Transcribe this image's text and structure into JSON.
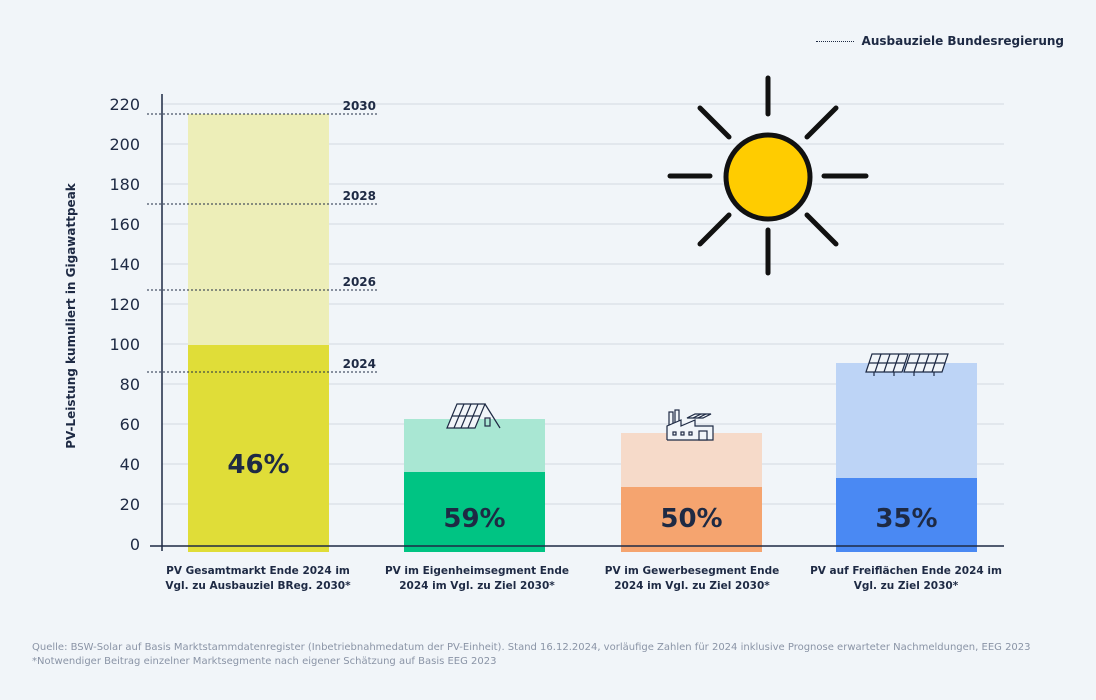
{
  "legend": {
    "target_label": "Ausbauziele Bundesregierung"
  },
  "chart_data": {
    "type": "bar",
    "ylabel": "PV-Leistung kumuliert in Gigawattpeak",
    "ylim": [
      0,
      220
    ],
    "yticks": [
      0,
      20,
      40,
      60,
      80,
      100,
      120,
      140,
      160,
      180,
      200,
      220
    ],
    "grid": true,
    "categories": [
      "PV Gesamtmarkt Ende 2024 im Vgl. zu Ausbauziel BReg. 2030*",
      "PV im Eigenheimsegment Ende 2024 im Vgl. zu Ziel 2030*",
      "PV im Gewerbesegment Ende 2024 im Vgl. zu Ziel 2030*",
      "PV auf Freiflächen Ende 2024 im Vgl. zu Ziel 2030*"
    ],
    "series": [
      {
        "values": [
          99.5,
          36,
          28.5,
          33
        ]
      },
      {
        "values": [
          215,
          62.5,
          55.5,
          90.5
        ]
      }
    ],
    "bar_labels": [
      "46%",
      "59%",
      "50%",
      "35%"
    ],
    "targets": [
      {
        "label": "2024",
        "value": 86
      },
      {
        "label": "2026",
        "value": 127
      },
      {
        "label": "2028",
        "value": 170
      },
      {
        "label": "2030",
        "value": 215
      }
    ],
    "colors": {
      "actual": [
        "#e0dd38",
        "#00c483",
        "#f5a46f",
        "#4a89f3"
      ],
      "target": [
        "#edeeb8",
        "#a9e7d3",
        "#f6dac9",
        "#bdd4f6"
      ],
      "sun": "#ffcc00",
      "axis": "#1e2a44"
    },
    "icons": [
      "",
      "house-solar-icon",
      "factory-solar-icon",
      "solar-panels-icon"
    ]
  },
  "footer": {
    "source": "Quelle: BSW-Solar auf Basis Marktstammdatenregister (Inbetriebnahmedatum der PV-Einheit). Stand 16.12.2024, vorläufige Zahlen für 2024 inklusive Prognose erwarteter Nachmeldungen, EEG 2023",
    "note": "*Notwendiger Beitrag einzelner Marktsegmente nach eigener Schätzung auf Basis EEG 2023"
  }
}
